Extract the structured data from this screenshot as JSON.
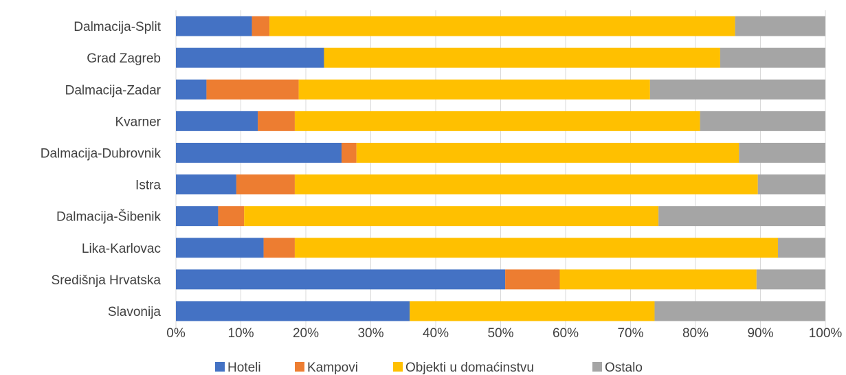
{
  "chart_data": {
    "type": "bar",
    "orientation": "horizontal",
    "stacked": "percent",
    "categories": [
      "Dalmacija-Split",
      "Grad Zagreb",
      "Dalmacija-Zadar",
      "Kvarner",
      "Dalmacija-Dubrovnik",
      "Istra",
      "Dalmacija-Šibenik",
      "Lika-Karlovac",
      "Središnja Hrvatska",
      "Slavonija"
    ],
    "series": [
      {
        "name": "Hoteli",
        "color": "#4472c4",
        "values": [
          11.7,
          22.8,
          4.7,
          12.6,
          25.5,
          9.3,
          6.5,
          13.5,
          50.7,
          36.0
        ]
      },
      {
        "name": "Kampovi",
        "color": "#ed7d31",
        "values": [
          2.7,
          0,
          14.2,
          5.7,
          2.3,
          9.0,
          4.0,
          4.8,
          8.4,
          0
        ]
      },
      {
        "name": "Objekti u domaćinstvu",
        "color": "#ffc000",
        "values": [
          71.7,
          61.0,
          54.1,
          62.4,
          58.9,
          71.3,
          63.8,
          74.4,
          30.3,
          37.7
        ]
      },
      {
        "name": "Ostalo",
        "color": "#a5a5a5",
        "values": [
          13.9,
          16.2,
          27.0,
          19.3,
          13.3,
          10.4,
          25.7,
          7.3,
          10.6,
          26.3
        ]
      }
    ],
    "x_ticks": [
      "0%",
      "10%",
      "20%",
      "30%",
      "40%",
      "50%",
      "60%",
      "70%",
      "80%",
      "90%",
      "100%"
    ],
    "xlim": [
      0,
      100
    ],
    "grid": true,
    "legend_position": "bottom",
    "title": "",
    "xlabel": "",
    "ylabel": ""
  }
}
